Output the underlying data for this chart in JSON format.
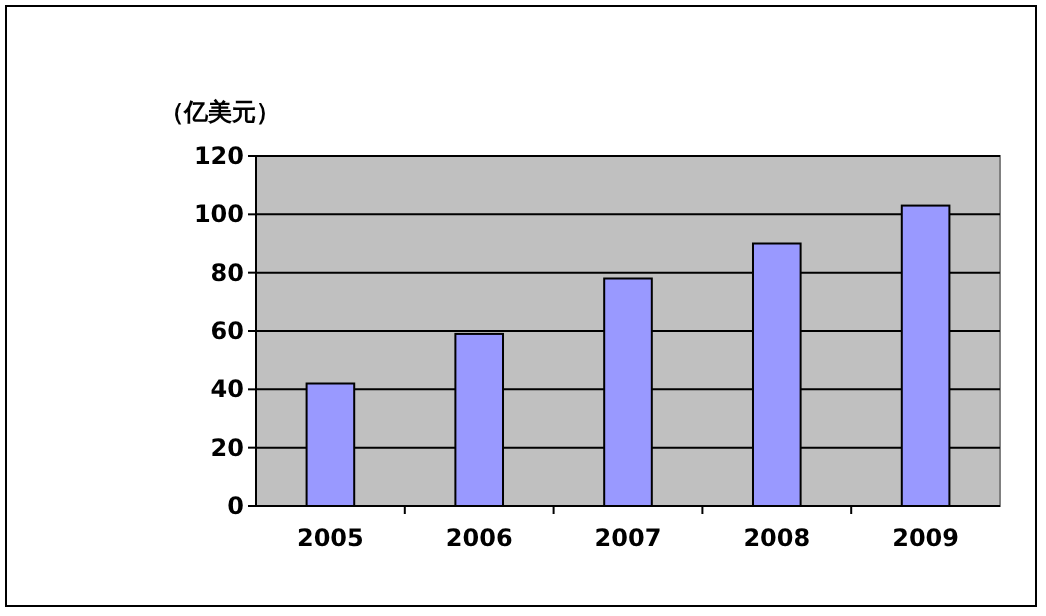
{
  "chart_data": {
    "type": "bar",
    "ylabel": "（亿美元）",
    "categories": [
      "2005",
      "2006",
      "2007",
      "2008",
      "2009"
    ],
    "values": [
      42,
      59,
      78,
      90,
      103
    ],
    "color": "#9999ff",
    "ylim": [
      0,
      120
    ],
    "yticks": [
      0,
      20,
      40,
      60,
      80,
      100,
      120
    ],
    "grid": "y"
  }
}
